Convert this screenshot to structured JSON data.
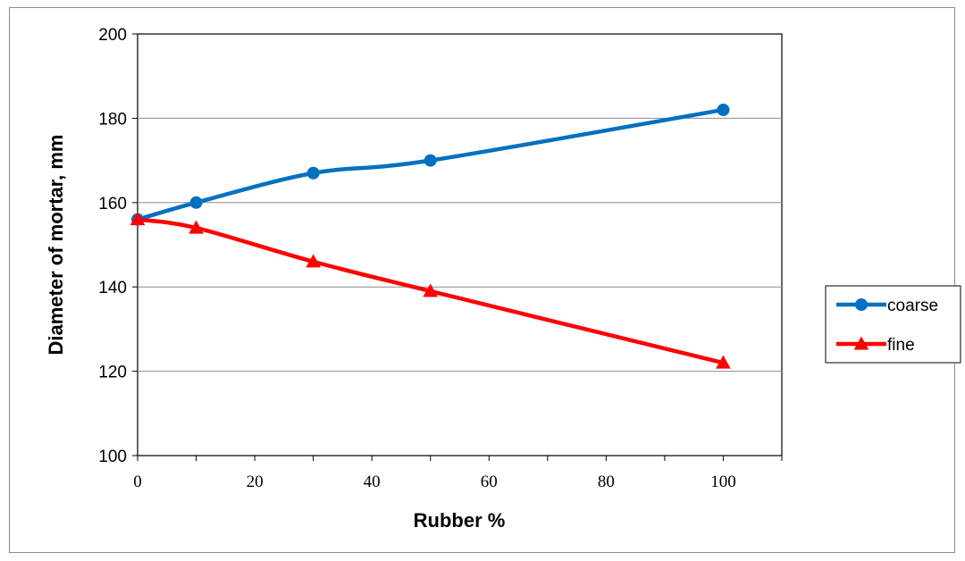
{
  "chart_data": {
    "type": "line",
    "title": "",
    "xlabel": "Rubber %",
    "ylabel": "Diameter of mortar, mm",
    "xlim": [
      0,
      110
    ],
    "ylim": [
      100,
      200
    ],
    "x_ticks": [
      0,
      20,
      40,
      60,
      80,
      100
    ],
    "y_ticks": [
      100,
      120,
      140,
      160,
      180,
      200
    ],
    "grid": "horizontal",
    "legend": "right",
    "x": [
      0,
      10,
      30,
      50,
      100
    ],
    "series": [
      {
        "name": "coarse",
        "values": [
          156,
          160,
          167,
          170,
          182
        ],
        "color": "#0070c0",
        "marker": "circle"
      },
      {
        "name": "fine",
        "values": [
          156,
          154,
          146,
          139,
          122
        ],
        "color": "#ff0000",
        "marker": "triangle"
      }
    ]
  }
}
